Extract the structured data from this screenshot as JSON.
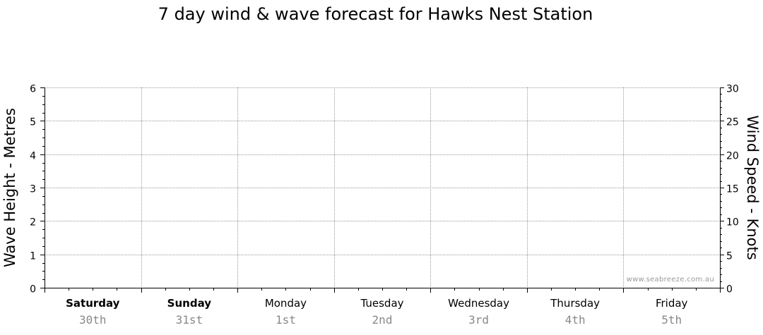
{
  "chart_data": {
    "type": "line",
    "title": "7 day wind & wave forecast for Hawks Nest Station",
    "y_left": {
      "label": "Wave Height - Metres",
      "range": [
        0,
        6
      ],
      "ticks": [
        "0",
        "1",
        "2",
        "3",
        "4",
        "5",
        "6"
      ]
    },
    "y_right": {
      "label": "Wind Speed - Knots",
      "range": [
        0,
        30
      ],
      "ticks": [
        "0",
        "5",
        "10",
        "15",
        "20",
        "25",
        "30"
      ]
    },
    "days": [
      {
        "day": "Saturday",
        "date": "30th",
        "bold": true
      },
      {
        "day": "Sunday",
        "date": "31st",
        "bold": true
      },
      {
        "day": "Monday",
        "date": "1st",
        "bold": false
      },
      {
        "day": "Tuesday",
        "date": "2nd",
        "bold": false
      },
      {
        "day": "Wednesday",
        "date": "3rd",
        "bold": false
      },
      {
        "day": "Thursday",
        "date": "4th",
        "bold": false
      },
      {
        "day": "Friday",
        "date": "5th",
        "bold": false
      }
    ],
    "series": [],
    "grid": true,
    "watermark": "www.seabreeze.com.au"
  }
}
